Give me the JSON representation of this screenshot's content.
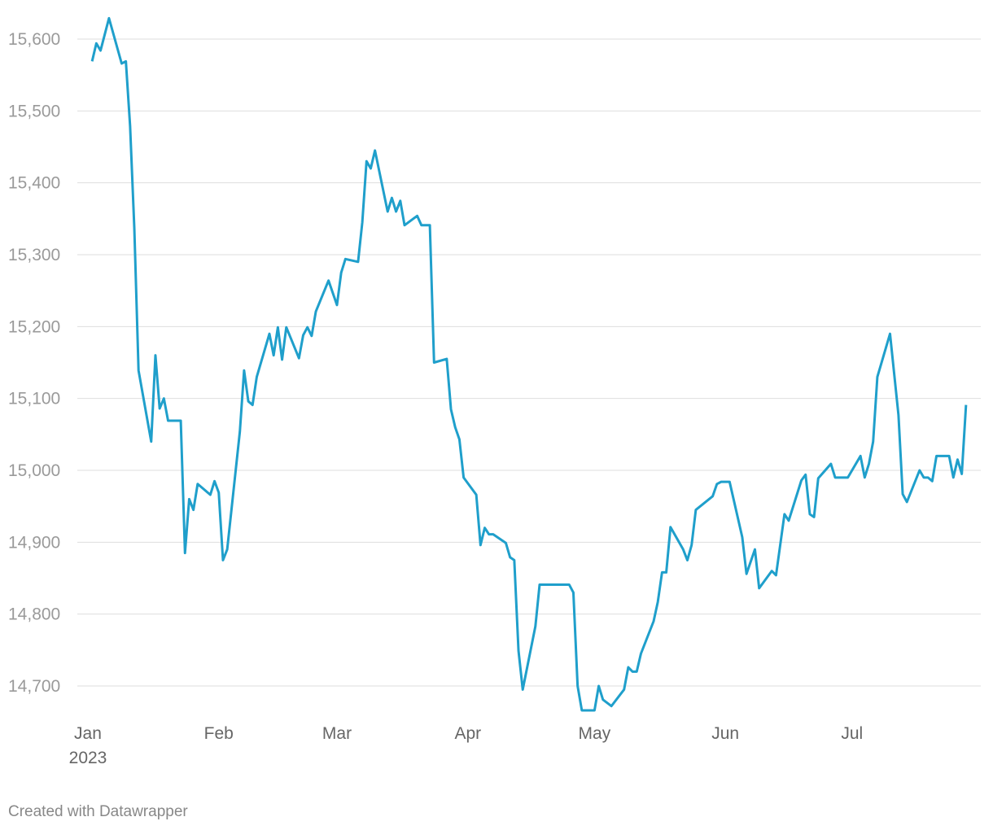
{
  "chart_data": {
    "type": "line",
    "x": [
      1,
      2,
      3,
      5,
      8,
      9,
      10,
      11,
      12,
      15,
      16,
      17,
      18,
      19,
      22,
      23,
      24,
      25,
      26,
      29,
      30,
      31,
      32,
      33,
      36,
      37,
      38,
      39,
      40,
      43,
      44,
      45,
      46,
      47,
      50,
      51,
      52,
      53,
      54,
      57,
      59,
      60,
      61,
      64,
      65,
      66,
      67,
      68,
      71,
      72,
      73,
      74,
      75,
      78,
      79,
      81,
      82,
      85,
      86,
      87,
      88,
      89,
      92,
      93,
      94,
      95,
      96,
      99,
      100,
      101,
      102,
      103,
      106,
      107,
      114,
      115,
      116,
      117,
      120,
      121,
      122,
      124,
      127,
      128,
      129,
      130,
      131,
      134,
      135,
      136,
      137,
      138,
      141,
      142,
      143,
      144,
      148,
      149,
      150,
      152,
      155,
      156,
      158,
      159,
      162,
      163,
      165,
      166,
      169,
      170,
      171,
      172,
      173,
      176,
      177,
      180,
      183,
      184,
      185,
      186,
      187,
      190,
      192,
      193,
      194,
      197,
      198,
      199,
      200,
      201,
      204,
      205,
      206,
      207,
      208
    ],
    "series": [
      {
        "color": "#1f9fcb",
        "values": [
          15569,
          15594,
          15584,
          15629,
          15566,
          15569,
          15479,
          15337,
          15139,
          15040,
          15160,
          15086,
          15100,
          15069,
          15069,
          14885,
          14960,
          14945,
          14981,
          14966,
          14985,
          14969,
          14875,
          14890,
          15054,
          15139,
          15096,
          15091,
          15130,
          15190,
          15160,
          15199,
          15154,
          15199,
          15156,
          15188,
          15199,
          15187,
          15221,
          15264,
          15230,
          15275,
          15294,
          15290,
          15345,
          15430,
          15420,
          15445,
          15360,
          15379,
          15360,
          15375,
          15341,
          15354,
          15341,
          15341,
          15150,
          15155,
          15085,
          15060,
          15043,
          14990,
          14966,
          14896,
          14920,
          14911,
          14911,
          14899,
          14879,
          14875,
          14749,
          14695,
          14783,
          14841,
          14841,
          14830,
          14700,
          14666,
          14666,
          14700,
          14681,
          14672,
          14695,
          14726,
          14720,
          14720,
          14745,
          14790,
          14817,
          14858,
          14858,
          14921,
          14890,
          14875,
          14896,
          14945,
          14964,
          14981,
          14984,
          14984,
          14907,
          14856,
          14890,
          14836,
          14860,
          14854,
          14939,
          14930,
          14986,
          14994,
          14939,
          14935,
          14989,
          15009,
          14990,
          14990,
          15020,
          14990,
          15009,
          15040,
          15130,
          15190,
          15077,
          14967,
          14956,
          15000,
          14990,
          14990,
          14985,
          15020,
          15020,
          14990,
          15015,
          14995,
          15091
        ]
      }
    ],
    "xlim": [
      -2.5,
      211.5
    ],
    "xticks": [
      {
        "value": 0,
        "label": "Jan"
      },
      {
        "value": 31,
        "label": "Feb"
      },
      {
        "value": 59,
        "label": "Mar"
      },
      {
        "value": 90,
        "label": "Apr"
      },
      {
        "value": 120,
        "label": "May"
      },
      {
        "value": 151,
        "label": "Jun"
      },
      {
        "value": 181,
        "label": "Jul"
      }
    ],
    "x_year_label": "2023",
    "ylim": [
      14650,
      15630
    ],
    "yticks": [
      {
        "value": 14700,
        "label": "14,700"
      },
      {
        "value": 14800,
        "label": "14,800"
      },
      {
        "value": 14900,
        "label": "14,900"
      },
      {
        "value": 15000,
        "label": "15,000"
      },
      {
        "value": 15100,
        "label": "15,100"
      },
      {
        "value": 15200,
        "label": "15,200"
      },
      {
        "value": 15300,
        "label": "15,300"
      },
      {
        "value": 15400,
        "label": "15,400"
      },
      {
        "value": 15500,
        "label": "15,500"
      },
      {
        "value": 15600,
        "label": "15,600"
      }
    ],
    "grid": true
  },
  "footer": "Created with Datawrapper"
}
